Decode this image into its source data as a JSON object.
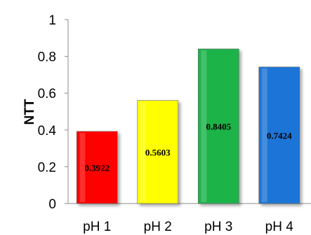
{
  "chart_data": {
    "type": "bar",
    "categories": [
      "pH 1",
      "pH 2",
      "pH 3",
      "pH 4"
    ],
    "values": [
      0.3922,
      0.5603,
      0.8405,
      0.7424
    ],
    "data_labels": [
      "0.3922",
      "0.5603",
      "0.8405",
      "0.7424"
    ],
    "xlabel": "",
    "ylabel": "NTT",
    "ylim": [
      0,
      1
    ],
    "yticks": [
      0,
      0.2,
      0.4,
      0.6,
      0.8,
      1
    ],
    "ytick_labels": [
      "0",
      "0.2",
      "0.4",
      "0.6",
      "0.8",
      "1"
    ],
    "grid": false,
    "legend": "none",
    "colors": [
      "#ff0000",
      "#ffff00",
      "#1db34a",
      "#1e74d6"
    ]
  }
}
